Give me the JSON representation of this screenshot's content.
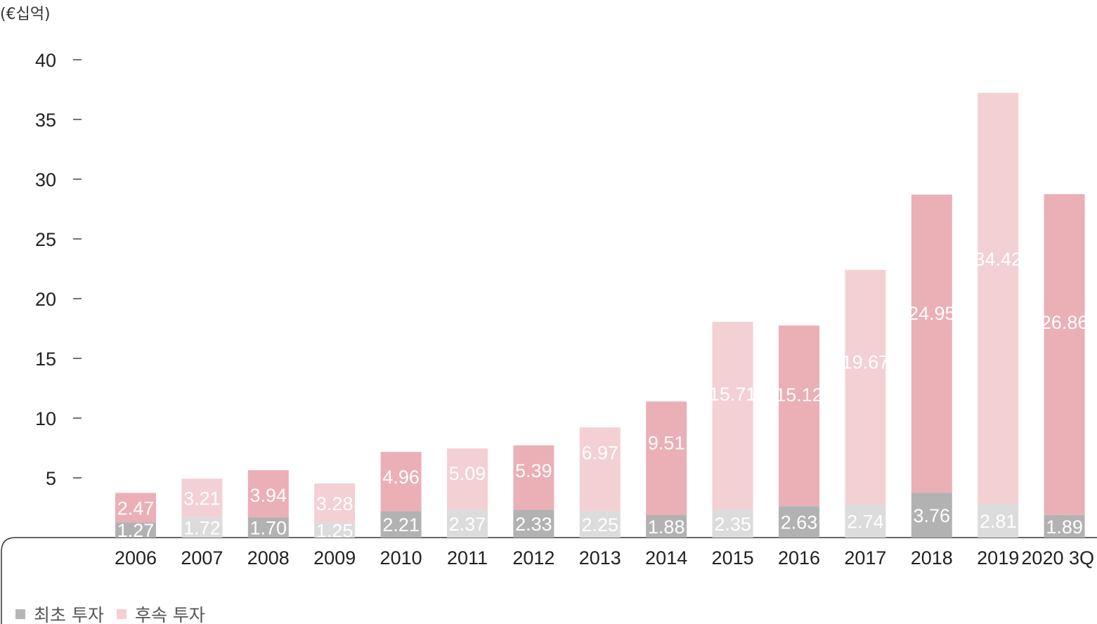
{
  "unit_label": "(€십억)",
  "legend": [
    {
      "label": "최초 투자",
      "color": "#b5b5b5"
    },
    {
      "label": "후속 투자",
      "color": "#f3d0d4"
    }
  ],
  "colors": {
    "first_dark": "#b2b2b2",
    "first_light": "#dcdcdc",
    "follow_dark": "#ebafb6",
    "follow_light": "#f3d0d4",
    "axis_text": "#222222",
    "bar_label": "#ffffff",
    "frame": "#333333"
  },
  "chart_data": {
    "type": "bar",
    "stacked": true,
    "categories": [
      "2006",
      "2007",
      "2008",
      "2009",
      "2010",
      "2011",
      "2012",
      "2013",
      "2014",
      "2015",
      "2016",
      "2017",
      "2018",
      "2019",
      "2020 3Q"
    ],
    "series": [
      {
        "name": "최초 투자",
        "values": [
          1.27,
          1.72,
          1.7,
          1.25,
          2.21,
          2.37,
          2.33,
          2.25,
          1.88,
          2.35,
          2.63,
          2.74,
          3.76,
          2.81,
          1.89
        ]
      },
      {
        "name": "후속 투자",
        "values": [
          2.47,
          3.21,
          3.94,
          3.28,
          4.96,
          5.09,
          5.39,
          6.97,
          9.51,
          15.71,
          15.12,
          19.67,
          24.95,
          34.42,
          26.86
        ]
      }
    ],
    "y_ticks": [
      5,
      10,
      15,
      20,
      25,
      30,
      35,
      40
    ],
    "ylim": [
      0,
      40
    ],
    "ylabel": "(€십억)",
    "xlabel": "",
    "title": "",
    "grid": false,
    "legend_position": "bottom-left",
    "shade_pattern": [
      "dark",
      "light",
      "dark",
      "light",
      "dark",
      "light",
      "dark",
      "light",
      "dark",
      "light",
      "dark",
      "light",
      "dark",
      "light",
      "dark"
    ]
  }
}
